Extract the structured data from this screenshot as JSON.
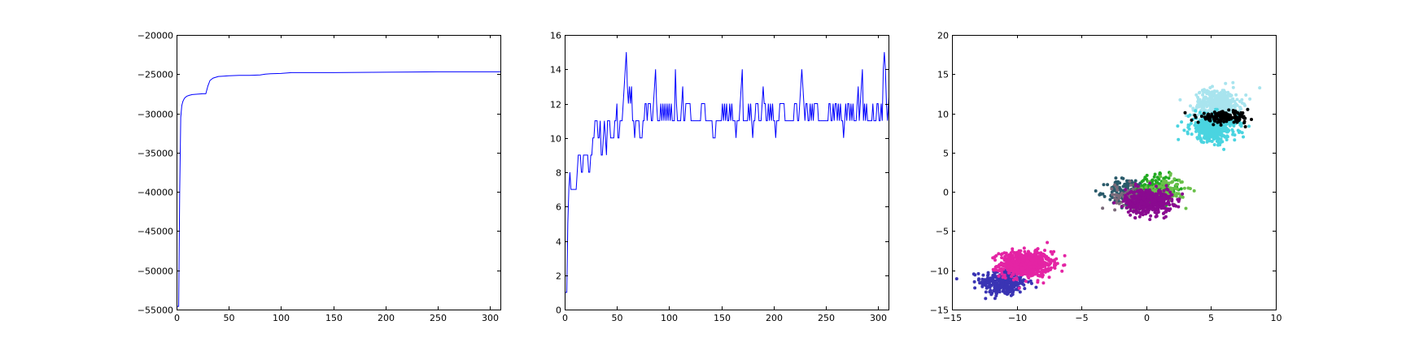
{
  "chart_data": [
    {
      "type": "line",
      "title": "",
      "xlabel": "",
      "ylabel": "",
      "xlim": [
        0,
        310
      ],
      "ylim": [
        -55000,
        -20000
      ],
      "xticks": [
        "0",
        "50",
        "100",
        "150",
        "200",
        "250",
        "300"
      ],
      "yticks": [
        "−55000",
        "−50000",
        "−45000",
        "−40000",
        "−35000",
        "−30000",
        "−25000",
        "−20000"
      ],
      "grid": false,
      "series": [
        {
          "color": "#0000ff",
          "x": [
            0,
            2,
            3,
            4,
            5,
            6,
            7,
            8,
            10,
            12,
            15,
            20,
            25,
            28,
            30,
            32,
            35,
            40,
            45,
            50,
            60,
            70,
            80,
            85,
            90,
            100,
            110,
            150,
            200,
            250,
            310
          ],
          "y": [
            -54600,
            -54600,
            -40000,
            -30500,
            -29000,
            -28500,
            -28200,
            -28000,
            -27800,
            -27700,
            -27600,
            -27550,
            -27500,
            -27500,
            -26500,
            -25800,
            -25500,
            -25300,
            -25250,
            -25200,
            -25150,
            -25150,
            -25100,
            -25000,
            -24950,
            -24900,
            -24800,
            -24800,
            -24750,
            -24700,
            -24700
          ]
        }
      ]
    },
    {
      "type": "line",
      "title": "",
      "xlabel": "",
      "ylabel": "",
      "xlim": [
        0,
        310
      ],
      "ylim": [
        0,
        16
      ],
      "xticks": [
        "0",
        "50",
        "100",
        "150",
        "200",
        "250",
        "300"
      ],
      "yticks": [
        "0",
        "2",
        "4",
        "6",
        "8",
        "10",
        "12",
        "14",
        "16"
      ],
      "grid": false,
      "series": [
        {
          "color": "#0000ff",
          "y": [
            1,
            1,
            1,
            5,
            7,
            8,
            7,
            7,
            7,
            7,
            7,
            7,
            8,
            9,
            9,
            9,
            8,
            8,
            9,
            9,
            9,
            9,
            9,
            8,
            8,
            9,
            9,
            10,
            10,
            11,
            11,
            11,
            10,
            10,
            11,
            9,
            9,
            10,
            11,
            10,
            9,
            11,
            11,
            11,
            10,
            10,
            10,
            10,
            11,
            11,
            12,
            10,
            10,
            11,
            11,
            11,
            12,
            13,
            14,
            15,
            13,
            12,
            13,
            12,
            13,
            11,
            11,
            10,
            11,
            11,
            11,
            11,
            10,
            10,
            10,
            11,
            11,
            12,
            12,
            11,
            12,
            12,
            12,
            11,
            11,
            12,
            13,
            14,
            12,
            11,
            11,
            11,
            12,
            11,
            12,
            11,
            12,
            11,
            12,
            11,
            12,
            11,
            12,
            11,
            11,
            11,
            14,
            12,
            11,
            11,
            11,
            11,
            12,
            13,
            11,
            11,
            12,
            12,
            12,
            12,
            12,
            11,
            11,
            11,
            11,
            11,
            11,
            11,
            11,
            11,
            11,
            12,
            12,
            12,
            12,
            11,
            11,
            11,
            11,
            11,
            11,
            11,
            10,
            10,
            10,
            11,
            11,
            11,
            11,
            11,
            11,
            12,
            11,
            12,
            11,
            12,
            11,
            11,
            12,
            11,
            12,
            11,
            11,
            11,
            10,
            11,
            11,
            11,
            12,
            13,
            14,
            11,
            11,
            11,
            11,
            11,
            12,
            11,
            12,
            11,
            10,
            11,
            11,
            12,
            12,
            12,
            11,
            11,
            11,
            12,
            13,
            12,
            12,
            11,
            11,
            12,
            11,
            12,
            11,
            12,
            11,
            11,
            10,
            11,
            11,
            11,
            12,
            12,
            12,
            12,
            12,
            11,
            11,
            11,
            11,
            11,
            11,
            11,
            11,
            11,
            12,
            12,
            12,
            11,
            11,
            12,
            13,
            14,
            13,
            12,
            11,
            12,
            12,
            11,
            11,
            12,
            11,
            12,
            11,
            12,
            12,
            12,
            12,
            11,
            11,
            11,
            11,
            11,
            11,
            11,
            11,
            11,
            11,
            12,
            12,
            11,
            11,
            12,
            11,
            12,
            12,
            11,
            12,
            11,
            12,
            11,
            11,
            10,
            11,
            12,
            11,
            12,
            12,
            11,
            12,
            11,
            12,
            11,
            11,
            11,
            12,
            13,
            11,
            12,
            13,
            14,
            11,
            12,
            11,
            12,
            11,
            11,
            11,
            11,
            11,
            12,
            11,
            11,
            11,
            12,
            12,
            11,
            11,
            12,
            11,
            14,
            15,
            14,
            12,
            11,
            12,
            13,
            11,
            11,
            11,
            11,
            12,
            12,
            11,
            12,
            11,
            11,
            11,
            11,
            12,
            11,
            12
          ]
        }
      ]
    },
    {
      "type": "scatter",
      "title": "",
      "xlabel": "",
      "ylabel": "",
      "xlim": [
        -15,
        10
      ],
      "ylim": [
        -15,
        20
      ],
      "xticks": [
        "−15",
        "−10",
        "−5",
        "0",
        "5",
        "10"
      ],
      "yticks": [
        "−15",
        "−10",
        "−5",
        "0",
        "5",
        "10",
        "15",
        "20"
      ],
      "grid": false,
      "clusters": [
        {
          "color": "#3a34b4",
          "center": [
            -11,
            -11.5
          ],
          "spread": [
            0.9,
            0.9
          ],
          "count": 320
        },
        {
          "color": "#e424a4",
          "center": [
            -9.3,
            -9.2
          ],
          "spread": [
            1.0,
            0.8
          ],
          "count": 650
        },
        {
          "color": "#2a5a6a",
          "center": [
            -1.4,
            -0.1
          ],
          "spread": [
            0.8,
            0.9
          ],
          "count": 170
        },
        {
          "color": "#7a6a7a",
          "center": [
            -0.8,
            -0.4
          ],
          "spread": [
            0.8,
            0.8
          ],
          "count": 130
        },
        {
          "color": "#22aa22",
          "center": [
            0.9,
            0.4
          ],
          "spread": [
            0.8,
            0.8
          ],
          "count": 180
        },
        {
          "color": "#6ac04a",
          "center": [
            1.4,
            0.2
          ],
          "spread": [
            0.8,
            0.8
          ],
          "count": 110
        },
        {
          "color": "#8a0a90",
          "center": [
            0.2,
            -1.2
          ],
          "spread": [
            0.9,
            0.8
          ],
          "count": 450
        },
        {
          "color": "#a8e4ee",
          "center": [
            5.5,
            11.3
          ],
          "spread": [
            0.9,
            0.9
          ],
          "count": 380
        },
        {
          "color": "#4ad4e0",
          "center": [
            5.2,
            8.2
          ],
          "spread": [
            0.9,
            0.9
          ],
          "count": 420
        },
        {
          "color": "#000000",
          "center": [
            6.0,
            9.5
          ],
          "spread": [
            1.0,
            0.35
          ],
          "count": 150
        }
      ]
    }
  ]
}
